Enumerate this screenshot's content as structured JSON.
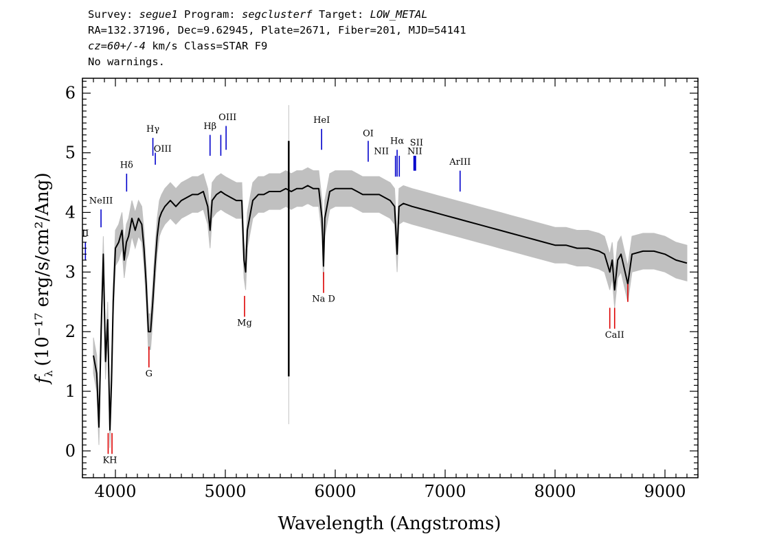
{
  "header": {
    "line1": {
      "survey_label": "Survey: ",
      "survey": "segue1",
      "program_label": " Program: ",
      "program": "segclusterf",
      "target_label": " Target: ",
      "target": "LOW_METAL"
    },
    "line2": "RA=132.37196, Dec=9.62945, Plate=2671, Fiber=201, MJD=54141",
    "line3": {
      "cz": "cz=60+/-4",
      "rest": " km/s Class=STAR F9"
    },
    "line4": "No warnings."
  },
  "colors": {
    "spectrum": "#000000",
    "error": "#c0c0c0",
    "emission": "#0000cc",
    "absorption": "#dd0000"
  },
  "chart_data": {
    "type": "line",
    "xlabel": "Wavelength (Angstroms)",
    "ylabel_text": "(10⁻¹⁷ erg/s/cm²/Ang)",
    "ylabel_symbol": "f",
    "ylabel_sub": "λ",
    "xlim": [
      3700,
      9300
    ],
    "ylim": [
      -0.45,
      6.25
    ],
    "xticks": [
      4000,
      5000,
      6000,
      7000,
      8000,
      9000
    ],
    "yticks": [
      0,
      1,
      2,
      3,
      4,
      5,
      6
    ],
    "series": [
      {
        "type": "flux",
        "points": [
          [
            3800,
            1.6
          ],
          [
            3830,
            1.3
          ],
          [
            3850,
            0.4
          ],
          [
            3870,
            2.0
          ],
          [
            3890,
            3.3
          ],
          [
            3910,
            1.5
          ],
          [
            3930,
            2.2
          ],
          [
            3950,
            0.35
          ],
          [
            3965,
            1.2
          ],
          [
            3980,
            2.5
          ],
          [
            4000,
            3.4
          ],
          [
            4030,
            3.5
          ],
          [
            4060,
            3.7
          ],
          [
            4080,
            3.2
          ],
          [
            4100,
            3.5
          ],
          [
            4120,
            3.6
          ],
          [
            4150,
            3.9
          ],
          [
            4180,
            3.7
          ],
          [
            4210,
            3.9
          ],
          [
            4240,
            3.8
          ],
          [
            4260,
            3.4
          ],
          [
            4280,
            2.8
          ],
          [
            4300,
            2.0
          ],
          [
            4320,
            2.0
          ],
          [
            4340,
            2.5
          ],
          [
            4360,
            3.1
          ],
          [
            4380,
            3.6
          ],
          [
            4400,
            3.9
          ],
          [
            4420,
            4.0
          ],
          [
            4450,
            4.1
          ],
          [
            4500,
            4.2
          ],
          [
            4550,
            4.1
          ],
          [
            4600,
            4.2
          ],
          [
            4650,
            4.25
          ],
          [
            4700,
            4.3
          ],
          [
            4750,
            4.3
          ],
          [
            4800,
            4.35
          ],
          [
            4840,
            4.1
          ],
          [
            4861,
            3.7
          ],
          [
            4880,
            4.2
          ],
          [
            4920,
            4.3
          ],
          [
            4960,
            4.35
          ],
          [
            5000,
            4.3
          ],
          [
            5050,
            4.25
          ],
          [
            5100,
            4.2
          ],
          [
            5150,
            4.2
          ],
          [
            5170,
            3.2
          ],
          [
            5185,
            3.0
          ],
          [
            5200,
            3.7
          ],
          [
            5250,
            4.2
          ],
          [
            5300,
            4.3
          ],
          [
            5350,
            4.3
          ],
          [
            5400,
            4.35
          ],
          [
            5450,
            4.35
          ],
          [
            5500,
            4.35
          ],
          [
            5550,
            4.4
          ],
          [
            5600,
            4.35
          ],
          [
            5650,
            4.4
          ],
          [
            5700,
            4.4
          ],
          [
            5750,
            4.45
          ],
          [
            5800,
            4.4
          ],
          [
            5850,
            4.4
          ],
          [
            5880,
            3.9
          ],
          [
            5893,
            3.1
          ],
          [
            5905,
            3.9
          ],
          [
            5950,
            4.35
          ],
          [
            6000,
            4.4
          ],
          [
            6050,
            4.4
          ],
          [
            6100,
            4.4
          ],
          [
            6150,
            4.4
          ],
          [
            6200,
            4.35
          ],
          [
            6250,
            4.3
          ],
          [
            6300,
            4.3
          ],
          [
            6350,
            4.3
          ],
          [
            6400,
            4.3
          ],
          [
            6450,
            4.25
          ],
          [
            6500,
            4.2
          ],
          [
            6540,
            4.1
          ],
          [
            6563,
            3.3
          ],
          [
            6580,
            4.1
          ],
          [
            6620,
            4.15
          ],
          [
            6700,
            4.1
          ],
          [
            6800,
            4.05
          ],
          [
            6900,
            4.0
          ],
          [
            7000,
            3.95
          ],
          [
            7100,
            3.9
          ],
          [
            7200,
            3.85
          ],
          [
            7300,
            3.8
          ],
          [
            7400,
            3.75
          ],
          [
            7500,
            3.7
          ],
          [
            7600,
            3.65
          ],
          [
            7700,
            3.6
          ],
          [
            7800,
            3.55
          ],
          [
            7900,
            3.5
          ],
          [
            8000,
            3.45
          ],
          [
            8100,
            3.45
          ],
          [
            8200,
            3.4
          ],
          [
            8300,
            3.4
          ],
          [
            8400,
            3.35
          ],
          [
            8450,
            3.3
          ],
          [
            8498,
            3.0
          ],
          [
            8520,
            3.2
          ],
          [
            8542,
            2.7
          ],
          [
            8570,
            3.2
          ],
          [
            8600,
            3.3
          ],
          [
            8662,
            2.8
          ],
          [
            8700,
            3.3
          ],
          [
            8800,
            3.35
          ],
          [
            8900,
            3.35
          ],
          [
            9000,
            3.3
          ],
          [
            9100,
            3.2
          ],
          [
            9200,
            3.15
          ]
        ],
        "spikes": [
          [
            5577,
            1.25,
            5.2
          ]
        ]
      },
      {
        "type": "error_band",
        "halfwidth": 0.3
      }
    ],
    "annotations": {
      "emission": [
        {
          "label": "II",
          "x": 3727,
          "y1": 3.2,
          "y2": 3.5,
          "lx": 3727,
          "ly": 3.6
        },
        {
          "label": "NeIII",
          "x": 3869,
          "y1": 3.75,
          "y2": 4.05,
          "lx": 3869,
          "ly": 4.15
        },
        {
          "label": "Hδ",
          "x": 4102,
          "y1": 4.35,
          "y2": 4.65,
          "lx": 4102,
          "ly": 4.75
        },
        {
          "label": "Hγ",
          "x": 4341,
          "y1": 4.95,
          "y2": 5.25,
          "lx": 4341,
          "ly": 5.35
        },
        {
          "label": "OIII",
          "x": 4363,
          "y1": 4.8,
          "y2": 5.0,
          "lx": 4430,
          "ly": 5.02
        },
        {
          "label": "Hβ",
          "x": 4861,
          "y1": 4.95,
          "y2": 5.3,
          "lx": 4861,
          "ly": 5.4
        },
        {
          "label": "OIII",
          "x": 4959,
          "y1": 4.95,
          "y2": 5.3,
          "lx": 5020,
          "ly": 5.55
        },
        {
          "label": "OIII",
          "x": 5007,
          "y1": 5.05,
          "y2": 5.45,
          "lx": 5020,
          "ly": 5.55
        },
        {
          "label": "HeI",
          "x": 5876,
          "y1": 5.05,
          "y2": 5.4,
          "lx": 5876,
          "ly": 5.5
        },
        {
          "label": "OI",
          "x": 6300,
          "y1": 4.85,
          "y2": 5.2,
          "lx": 6300,
          "ly": 5.28
        },
        {
          "label": "NII",
          "x": 6548,
          "y1": 4.6,
          "y2": 4.95,
          "lx": 6420,
          "ly": 4.98
        },
        {
          "label": "Hα",
          "x": 6563,
          "y1": 4.6,
          "y2": 5.05,
          "lx": 6563,
          "ly": 5.15
        },
        {
          "label": "NII",
          "x": 6583,
          "y1": 4.6,
          "y2": 4.95,
          "lx": 6420,
          "ly": 4.98
        },
        {
          "label": "SII",
          "x": 6716,
          "y1": 4.7,
          "y2": 4.95,
          "lx": 6740,
          "ly": 5.12
        },
        {
          "label": "SII",
          "x": 6731,
          "y1": 4.7,
          "y2": 4.95,
          "lx": 6740,
          "ly": 5.12
        },
        {
          "label": "NII",
          "x": 6724,
          "y1": 4.7,
          "y2": 4.95,
          "lx": 6724,
          "ly": 4.98
        },
        {
          "label": "ArIII",
          "x": 7136,
          "y1": 4.35,
          "y2": 4.7,
          "lx": 7136,
          "ly": 4.8
        }
      ],
      "absorption": [
        {
          "label": "KH",
          "x": 3934,
          "y1": -0.05,
          "y2": 0.3,
          "lx": 3950,
          "ly": -0.2
        },
        {
          "label": "",
          "x": 3969,
          "y1": -0.05,
          "y2": 0.3
        },
        {
          "label": "G",
          "x": 4305,
          "y1": 1.4,
          "y2": 1.75,
          "lx": 4305,
          "ly": 1.25
        },
        {
          "label": "Mg",
          "x": 5175,
          "y1": 2.25,
          "y2": 2.6,
          "lx": 5175,
          "ly": 2.1
        },
        {
          "label": "Na D",
          "x": 5894,
          "y1": 2.65,
          "y2": 3.0,
          "lx": 5894,
          "ly": 2.5
        },
        {
          "label": "CaII",
          "x": 8498,
          "y1": 2.05,
          "y2": 2.4,
          "lx": 8542,
          "ly": 1.9
        },
        {
          "label": "",
          "x": 8542,
          "y1": 2.05,
          "y2": 2.4
        },
        {
          "label": "",
          "x": 8662,
          "y1": 2.5,
          "y2": 2.8
        }
      ]
    }
  }
}
